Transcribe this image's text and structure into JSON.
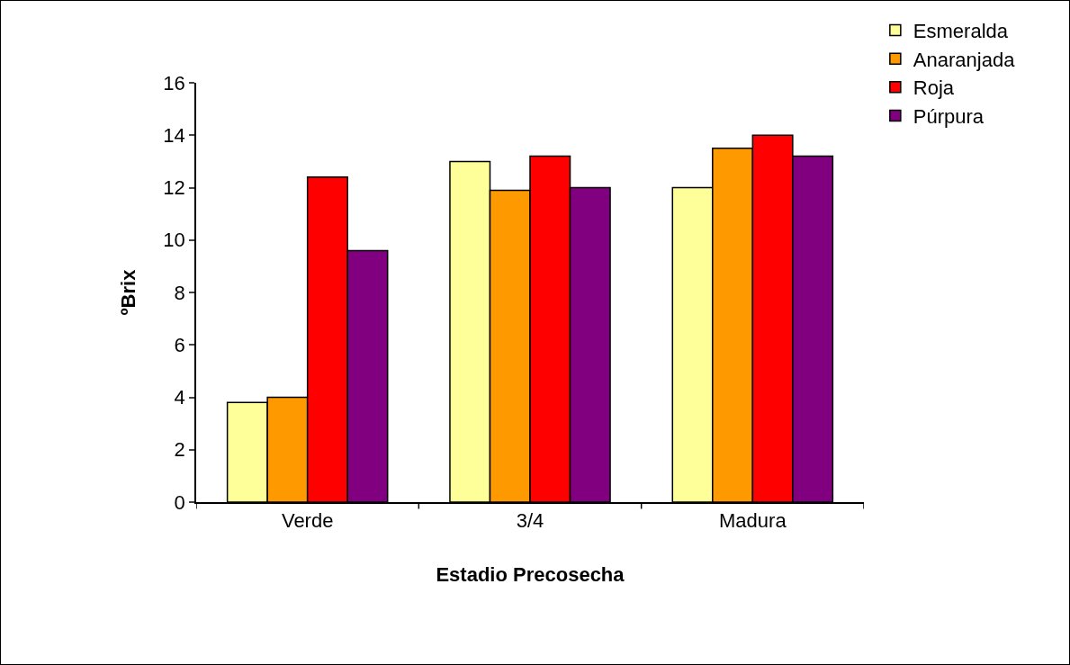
{
  "chart_data": {
    "type": "bar",
    "xlabel": "Estadio Precosecha",
    "ylabel": "ºBrix",
    "categories": [
      "Verde",
      "3/4",
      "Madura"
    ],
    "series": [
      {
        "name": "Esmeralda",
        "color": "#ffff99",
        "values": [
          3.8,
          13.0,
          12.0
        ]
      },
      {
        "name": "Anaranjada",
        "color": "#ff9900",
        "values": [
          4.0,
          11.9,
          13.5
        ]
      },
      {
        "name": "Roja",
        "color": "#ff0000",
        "values": [
          12.4,
          13.2,
          14.0
        ]
      },
      {
        "name": "Púrpura",
        "color": "#800080",
        "values": [
          9.6,
          12.0,
          13.2
        ]
      }
    ],
    "ylim": [
      0,
      16
    ],
    "yticks": [
      0,
      2,
      4,
      6,
      8,
      10,
      12,
      14,
      16
    ],
    "grid": false,
    "legend": "top right"
  }
}
